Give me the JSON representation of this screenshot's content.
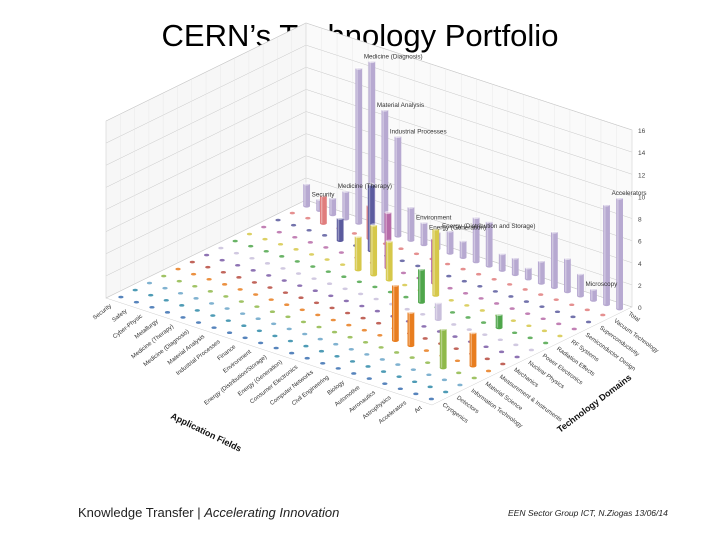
{
  "title": "CERN’s Technology Portfolio",
  "footer": {
    "left_main": "Knowledge Transfer | ",
    "left_italic": "Accelerating Innovation",
    "right": "EEN Sector Group ICT, N.Ziogas 13/06/14"
  },
  "chart_data": {
    "type": "bar3d",
    "title": "",
    "xlabel": "Application Fields",
    "ylabel": "Technology Domains",
    "zlim": [
      0,
      16
    ],
    "zticks": [
      0,
      2,
      4,
      6,
      8,
      10,
      12,
      14,
      16
    ],
    "application_fields": [
      "Security",
      "Safety",
      "Cyber-Physic",
      "Metallurgy",
      "Medicine (Therapy)",
      "Medicine (Diagnosis)",
      "Material Analysis",
      "Industrial Processes",
      "Finance",
      "Environment",
      "Energy (Distribution/Storage)",
      "Energy (Generation)",
      "Consumer Electronics",
      "Computer Networks",
      "Civil Engineering",
      "Biology",
      "Automotive",
      "Aeronautics",
      "Astrophysics",
      "Accelerators",
      "Art"
    ],
    "technology_domains": [
      "Cryogenics",
      "Detectors",
      "Information Technology",
      "Material Science",
      "Measurement & Instruments",
      "Mechanics",
      "Nuclear Physics",
      "Power Electronics",
      "Radiation Effects",
      "RF Systems",
      "Semiconductor Design",
      "Superconductivity",
      "Vacuum Technology",
      "Total"
    ],
    "total_labels": [
      "Medicine (Diagnosis)",
      "Security",
      "Material Analysis",
      "Medicine (Therapy)",
      "Industrial Processes",
      "Environment",
      "Energy (Generation)",
      "Energy (Distribution and Storage)",
      "Microscopy",
      "Accelerators"
    ],
    "total_values": [
      2,
      1,
      1.5,
      2.5,
      14,
      15,
      11,
      9,
      3,
      2,
      1.5,
      2,
      1.5,
      4,
      4,
      1.5,
      1.5,
      1,
      2,
      5,
      3,
      2,
      1,
      9,
      10
    ],
    "colors": [
      "#3a6eb0",
      "#2f8aa8",
      "#6aa5c8",
      "#8fb94a",
      "#e87d1f",
      "#b64a3e",
      "#7a5aa6",
      "#c9bfdc",
      "#4fa64b",
      "#d6c84a",
      "#b76ba8",
      "#5b5b9e",
      "#e07d7d"
    ],
    "tall_bars": [
      {
        "x": 2,
        "y": 12,
        "z": 2.5
      },
      {
        "x": 5,
        "y": 12,
        "z": 3
      },
      {
        "x": 6,
        "y": 11,
        "z": 6
      },
      {
        "x": 8,
        "y": 10,
        "z": 5
      },
      {
        "x": 8,
        "y": 9,
        "z": 4.5
      },
      {
        "x": 7,
        "y": 9,
        "z": 3
      },
      {
        "x": 4,
        "y": 11,
        "z": 2
      },
      {
        "x": 11,
        "y": 10,
        "z": 4
      },
      {
        "x": 12,
        "y": 9,
        "z": 6
      },
      {
        "x": 12,
        "y": 8,
        "z": 3
      },
      {
        "x": 9,
        "y": 9,
        "z": 3.5
      },
      {
        "x": 14,
        "y": 4,
        "z": 5
      },
      {
        "x": 15,
        "y": 4,
        "z": 3
      },
      {
        "x": 18,
        "y": 3,
        "z": 3.5
      },
      {
        "x": 19,
        "y": 4,
        "z": 3
      },
      {
        "x": 14,
        "y": 7,
        "z": 1.5
      },
      {
        "x": 17,
        "y": 8,
        "z": 1.2
      }
    ]
  }
}
